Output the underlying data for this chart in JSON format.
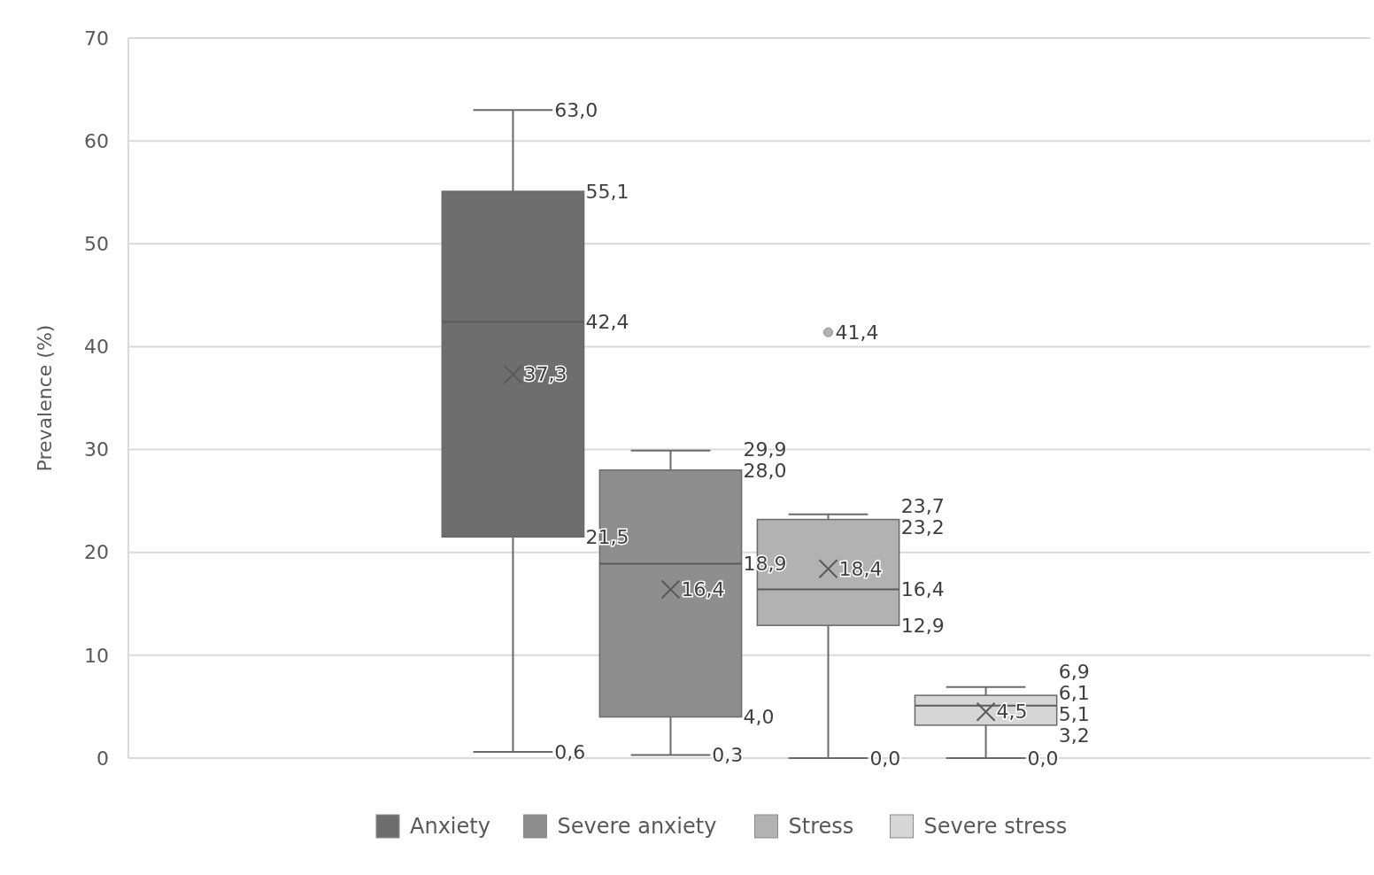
{
  "chart_data": {
    "type": "box",
    "ylabel": "Prevalence (%)",
    "categories": [
      null
    ],
    "ylim": [
      0,
      70
    ],
    "yticks": [
      0,
      10,
      20,
      30,
      40,
      50,
      60,
      70
    ],
    "grid": "y",
    "legend": "bottom",
    "series": [
      {
        "name": "Anxiety",
        "color": "#6e6e6e",
        "boxes": [
          {
            "low": 0.6,
            "q1": 21.5,
            "median": 42.4,
            "q3": 55.1,
            "high": 63.0,
            "mean": 37.3
          }
        ],
        "value_labels": [
          [
            "63,0",
            "55,1",
            "42,4",
            "21,5",
            "0,6",
            "37,3"
          ]
        ]
      },
      {
        "name": "Severe anxiety",
        "color": "#8e8e8e",
        "boxes": [
          {
            "low": 0.3,
            "q1": 4.0,
            "median": 18.9,
            "q3": 28.0,
            "high": 29.9,
            "mean": 16.4
          }
        ],
        "value_labels": [
          [
            "29,9",
            "28,0",
            "18,9",
            "4,0",
            "0,3",
            "16,4"
          ]
        ]
      },
      {
        "name": "Stress",
        "color": "#b2b2b2",
        "boxes": [
          {
            "low": 0.0,
            "q1": 12.9,
            "median": 16.4,
            "q3": 23.2,
            "high": 23.7,
            "mean": 18.4,
            "outliers": [
              41.4
            ]
          }
        ],
        "value_labels": [
          [
            "23,7",
            "23,2",
            "16,4",
            "12,9",
            "0,0",
            "18,4",
            "41,4"
          ]
        ]
      },
      {
        "name": "Severe stress",
        "color": "#d6d6d6",
        "boxes": [
          {
            "low": 0.0,
            "q1": 3.2,
            "median": 5.1,
            "q3": 6.1,
            "high": 6.9,
            "mean": 4.5
          }
        ],
        "value_labels": [
          [
            "6,9",
            "6,1",
            "5,1",
            "3,2",
            "0,0",
            "4,5"
          ]
        ]
      }
    ]
  }
}
